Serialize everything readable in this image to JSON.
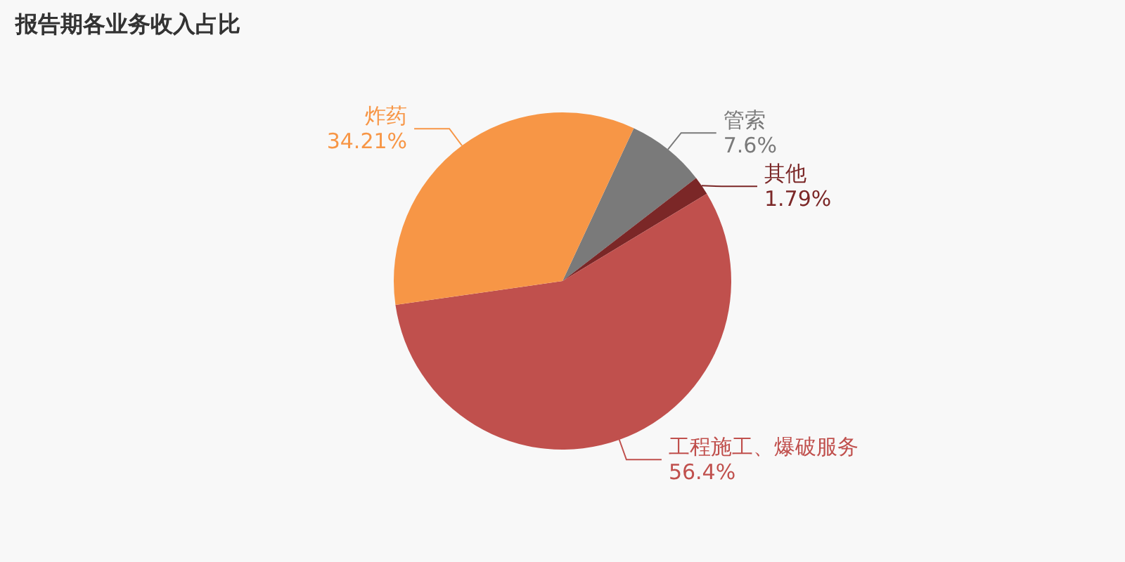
{
  "chart_data": {
    "type": "pie",
    "title": "报告期各业务收入占比",
    "categories": [
      "管索",
      "其他",
      "工程施工、爆破服务",
      "炸药"
    ],
    "values": [
      7.6,
      1.79,
      56.4,
      34.21
    ],
    "colors": [
      "#7a7a7a",
      "#7b2727",
      "#c0504d",
      "#f79646"
    ],
    "value_labels": [
      "7.6%",
      "1.79%",
      "56.4%",
      "34.21%"
    ],
    "legend": false
  }
}
